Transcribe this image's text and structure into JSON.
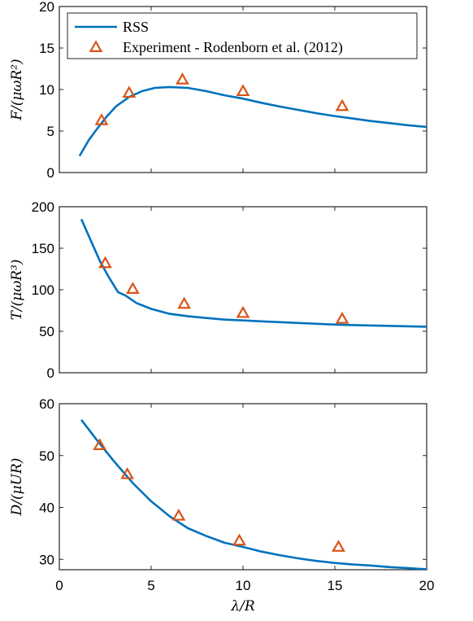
{
  "chart_data": [
    {
      "type": "line",
      "ylabel": "F/(μωR²)",
      "xlabel": "",
      "xlim": [
        0,
        20
      ],
      "ylim": [
        0,
        20
      ],
      "xticks": [
        0,
        5,
        10,
        15,
        20
      ],
      "yticks": [
        0,
        5,
        10,
        15,
        20
      ],
      "xtick_labels_shown": false,
      "legend": {
        "placement": "top-left",
        "entries": [
          "RSS",
          "Experiment - Rodenborn et al. (2012)"
        ]
      },
      "series": [
        {
          "name": "RSS",
          "kind": "line",
          "color": "#0072BD",
          "x": [
            1.1,
            1.6,
            2.1,
            2.6,
            3.1,
            3.8,
            4.5,
            5.2,
            6.0,
            7.0,
            8.0,
            9.0,
            10.0,
            11.0,
            12.0,
            13.0,
            14.0,
            15.0,
            16.0,
            17.0,
            18.0,
            19.0,
            20.0
          ],
          "y": [
            2.0,
            3.9,
            5.4,
            6.8,
            8.0,
            9.1,
            9.8,
            10.2,
            10.3,
            10.2,
            9.8,
            9.3,
            8.9,
            8.4,
            7.95,
            7.55,
            7.15,
            6.8,
            6.5,
            6.2,
            5.95,
            5.7,
            5.5
          ]
        },
        {
          "name": "Experiment - Rodenborn et al. (2012)",
          "kind": "markers",
          "color": "#D95319",
          "x": [
            2.3,
            3.8,
            6.7,
            10.0,
            15.4
          ],
          "y": [
            6.3,
            9.6,
            11.2,
            9.8,
            8.0
          ]
        }
      ]
    },
    {
      "type": "line",
      "ylabel": "T/(μωR³)",
      "xlabel": "",
      "xlim": [
        0,
        20
      ],
      "ylim": [
        0,
        200
      ],
      "xticks": [
        0,
        5,
        10,
        15,
        20
      ],
      "yticks": [
        0,
        50,
        100,
        150,
        200
      ],
      "xtick_labels_shown": false,
      "series": [
        {
          "name": "RSS",
          "kind": "line",
          "color": "#0072BD",
          "x": [
            1.2,
            1.7,
            2.2,
            2.7,
            3.2,
            3.6,
            4.2,
            5.0,
            6.0,
            7.0,
            8.0,
            9.0,
            10.0,
            11.0,
            12.0,
            13.0,
            14.0,
            15.0,
            16.0,
            17.0,
            18.0,
            19.0,
            20.0
          ],
          "y": [
            185,
            160,
            135,
            115,
            97,
            93,
            84,
            77,
            71,
            68,
            66,
            64,
            63,
            62,
            61,
            60,
            59,
            58,
            57.5,
            57,
            56.5,
            56,
            55.5
          ]
        },
        {
          "name": "Experiment - Rodenborn et al. (2012)",
          "kind": "markers",
          "color": "#D95319",
          "x": [
            2.5,
            4.0,
            6.8,
            10.0,
            15.4
          ],
          "y": [
            132,
            101,
            83,
            72,
            65
          ]
        }
      ]
    },
    {
      "type": "line",
      "ylabel": "D/(μUR)",
      "xlabel": "λ/R",
      "xlim": [
        0,
        20
      ],
      "ylim": [
        28,
        60
      ],
      "xticks": [
        0,
        5,
        10,
        15,
        20
      ],
      "xtick_labels": [
        "0",
        "5",
        "10",
        "15",
        "20"
      ],
      "yticks": [
        30,
        40,
        50,
        60
      ],
      "series": [
        {
          "name": "RSS",
          "kind": "line",
          "color": "#0072BD",
          "x": [
            1.2,
            2.0,
            3.0,
            4.0,
            5.0,
            6.0,
            7.0,
            8.0,
            9.0,
            10.0,
            11.0,
            12.0,
            13.0,
            14.0,
            15.0,
            16.0,
            17.0,
            18.0,
            19.0,
            20.0
          ],
          "y": [
            56.9,
            53.2,
            48.8,
            44.7,
            41.2,
            38.3,
            36.0,
            34.5,
            33.2,
            32.4,
            31.5,
            30.8,
            30.2,
            29.7,
            29.3,
            29.0,
            28.8,
            28.5,
            28.3,
            28.1
          ]
        },
        {
          "name": "Experiment - Rodenborn et al. (2012)",
          "kind": "markers",
          "color": "#D95319",
          "x": [
            2.2,
            3.7,
            6.5,
            9.8,
            15.2
          ],
          "y": [
            52.0,
            46.4,
            38.4,
            33.6,
            32.4
          ]
        }
      ]
    }
  ]
}
